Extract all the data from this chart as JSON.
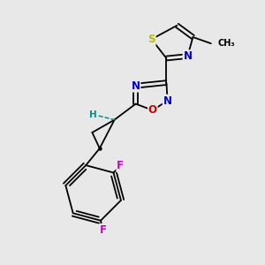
{
  "background_color": "#e8e8e8",
  "atom_colors": {
    "C": "#000000",
    "N": "#0000cc",
    "O": "#cc0000",
    "S": "#bbbb00",
    "F": "#cc00cc",
    "H": "#009090"
  },
  "bond_color": "#000000",
  "figsize": [
    3.0,
    3.0
  ],
  "dpi": 100,
  "lw": 1.3,
  "lw2": 1.3,
  "doff": 2.0,
  "fs": 8.5
}
